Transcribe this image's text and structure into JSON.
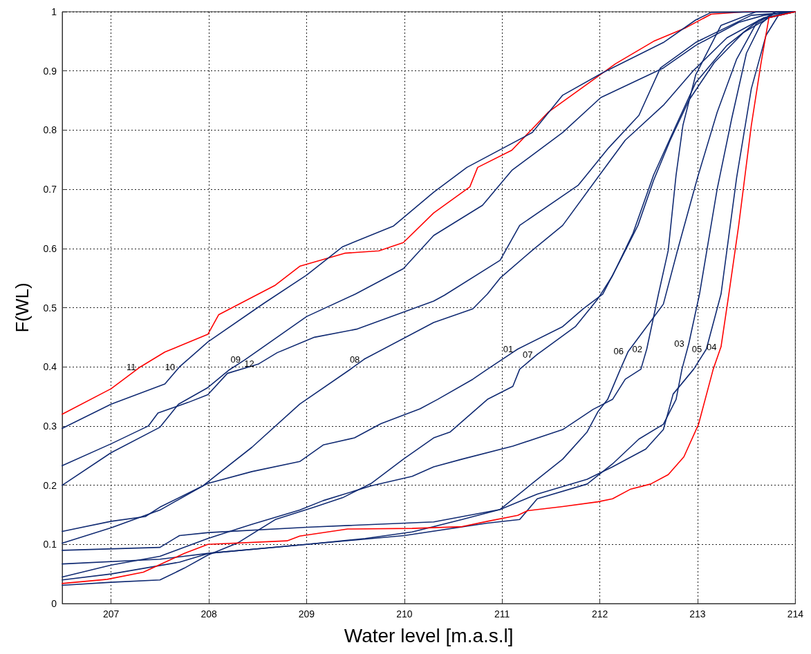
{
  "chart_data": {
    "type": "line",
    "xlabel": "Water level [m.a.s.l]",
    "ylabel": "F(WL)",
    "xlim": [
      206.5,
      214
    ],
    "xticks": [
      207,
      208,
      209,
      210,
      211,
      212,
      213,
      214
    ],
    "ylim": [
      0,
      1
    ],
    "yticks": [
      0,
      0.1,
      0.2,
      0.3,
      0.4,
      0.5,
      0.6,
      0.7,
      0.8,
      0.9,
      1
    ],
    "grid": true,
    "legend": false,
    "marker": "none",
    "line_style": "solid",
    "series": [
      {
        "name": "11",
        "color": "#ff0000",
        "x": [
          206.5,
          207.0,
          207.3,
          207.55,
          207.99,
          208.1,
          208.68,
          208.93,
          209.39,
          209.74,
          209.99,
          210.3,
          210.67,
          210.75,
          211.1,
          211.47,
          212.16,
          212.55,
          212.88,
          213.14,
          213.5,
          214
        ],
        "values": [
          0.32,
          0.363,
          0.4,
          0.425,
          0.455,
          0.488,
          0.538,
          0.57,
          0.592,
          0.596,
          0.61,
          0.66,
          0.704,
          0.737,
          0.766,
          0.83,
          0.912,
          0.95,
          0.973,
          0.996,
          1,
          1
        ]
      },
      {
        "name": "10",
        "color": "#102a72",
        "x": [
          206.5,
          207.0,
          207.55,
          207.7,
          207.99,
          208.56,
          209.0,
          209.37,
          209.89,
          210.3,
          210.64,
          211.31,
          211.62,
          212.03,
          212.65,
          212.98,
          213.14,
          214
        ],
        "values": [
          0.296,
          0.337,
          0.371,
          0.4,
          0.442,
          0.507,
          0.555,
          0.603,
          0.638,
          0.695,
          0.737,
          0.796,
          0.859,
          0.897,
          0.948,
          0.986,
          0.999,
          1
        ]
      },
      {
        "name": "09",
        "color": "#102a72",
        "x": [
          206.5,
          207.0,
          207.5,
          207.69,
          207.99,
          208.21,
          208.37,
          209.0,
          209.5,
          209.99,
          210.3,
          210.8,
          211.1,
          211.62,
          212.01,
          212.65,
          212.98,
          213.42,
          213.68,
          214
        ],
        "values": [
          0.2,
          0.255,
          0.298,
          0.337,
          0.365,
          0.395,
          0.412,
          0.485,
          0.523,
          0.566,
          0.622,
          0.673,
          0.732,
          0.796,
          0.855,
          0.905,
          0.943,
          0.982,
          0.994,
          1
        ]
      },
      {
        "name": "12",
        "color": "#102a72",
        "x": [
          206.5,
          207.0,
          207.38,
          207.48,
          207.79,
          207.99,
          208.19,
          208.51,
          208.7,
          209.08,
          209.52,
          210.3,
          210.41,
          210.98,
          211.18,
          211.78,
          212.09,
          212.4,
          212.62,
          212.98,
          213.55,
          214
        ],
        "values": [
          0.233,
          0.27,
          0.3,
          0.322,
          0.34,
          0.353,
          0.389,
          0.405,
          0.424,
          0.45,
          0.464,
          0.511,
          0.521,
          0.58,
          0.639,
          0.707,
          0.77,
          0.825,
          0.905,
          0.948,
          0.994,
          1
        ]
      },
      {
        "name": "08",
        "color": "#102a72",
        "x": [
          206.5,
          207.0,
          207.5,
          207.94,
          208.44,
          208.93,
          209.44,
          209.59,
          210.3,
          210.7,
          210.85,
          210.98,
          211.31,
          211.62,
          212.01,
          212.26,
          212.65,
          212.96,
          213.3,
          213.68,
          214
        ],
        "values": [
          0.102,
          0.128,
          0.158,
          0.199,
          0.264,
          0.337,
          0.395,
          0.413,
          0.475,
          0.498,
          0.523,
          0.55,
          0.597,
          0.639,
          0.727,
          0.783,
          0.842,
          0.901,
          0.956,
          0.99,
          1
        ]
      },
      {
        "name": "01",
        "color": "#102a72",
        "x": [
          206.5,
          207.0,
          207.35,
          207.5,
          207.99,
          208.44,
          208.93,
          209.17,
          209.49,
          209.76,
          210.16,
          210.34,
          210.7,
          210.85,
          211.16,
          211.62,
          211.83,
          212.03,
          212.21,
          212.39,
          212.55,
          212.72,
          212.91,
          213.17,
          213.47,
          213.73,
          214
        ],
        "values": [
          0.122,
          0.139,
          0.147,
          0.163,
          0.203,
          0.223,
          0.24,
          0.268,
          0.28,
          0.304,
          0.329,
          0.345,
          0.379,
          0.396,
          0.43,
          0.468,
          0.498,
          0.523,
          0.58,
          0.639,
          0.715,
          0.783,
          0.85,
          0.914,
          0.965,
          0.99,
          1
        ]
      },
      {
        "name": "07",
        "color": "#102a72",
        "x": [
          206.5,
          207.0,
          207.5,
          207.75,
          207.99,
          208.29,
          208.68,
          209.08,
          209.37,
          209.66,
          209.99,
          210.3,
          210.47,
          210.85,
          211.11,
          211.18,
          211.36,
          211.75,
          211.98,
          212.13,
          212.34,
          212.55,
          212.78,
          212.98,
          213.3,
          213.63,
          214
        ],
        "values": [
          0.031,
          0.036,
          0.04,
          0.06,
          0.082,
          0.102,
          0.142,
          0.163,
          0.179,
          0.203,
          0.244,
          0.28,
          0.29,
          0.345,
          0.367,
          0.396,
          0.421,
          0.468,
          0.515,
          0.554,
          0.626,
          0.724,
          0.808,
          0.88,
          0.943,
          0.986,
          1
        ]
      },
      {
        "name": "06",
        "color": "#102a72",
        "x": [
          206.5,
          207.0,
          207.7,
          208.0,
          209.0,
          209.6,
          210.08,
          210.59,
          210.98,
          211.36,
          211.62,
          211.87,
          211.98,
          212.08,
          212.21,
          212.29,
          212.52,
          212.65,
          212.8,
          213.0,
          213.2,
          213.4,
          213.6,
          213.8,
          214
        ],
        "values": [
          0.04,
          0.05,
          0.07,
          0.085,
          0.1,
          0.11,
          0.121,
          0.142,
          0.159,
          0.21,
          0.244,
          0.29,
          0.324,
          0.345,
          0.396,
          0.426,
          0.477,
          0.506,
          0.6,
          0.72,
          0.83,
          0.92,
          0.98,
          1,
          1
        ]
      },
      {
        "name": "02",
        "color": "#102a72",
        "x": [
          206.5,
          207.0,
          207.5,
          207.99,
          208.44,
          208.93,
          209.17,
          209.66,
          210.08,
          210.3,
          210.59,
          211.11,
          211.62,
          211.93,
          212.13,
          212.26,
          212.42,
          212.48,
          212.6,
          212.7,
          212.78,
          212.85,
          212.98,
          213.24,
          213.6,
          214
        ],
        "values": [
          0.045,
          0.065,
          0.08,
          0.11,
          0.134,
          0.158,
          0.174,
          0.199,
          0.215,
          0.231,
          0.244,
          0.266,
          0.294,
          0.328,
          0.345,
          0.379,
          0.396,
          0.43,
          0.523,
          0.597,
          0.724,
          0.808,
          0.893,
          0.977,
          1,
          1
        ]
      },
      {
        "name": "03",
        "color": "#102a72",
        "x": [
          206.5,
          207.5,
          208.0,
          209.0,
          210.0,
          210.85,
          211.18,
          211.36,
          211.87,
          212.13,
          212.4,
          212.65,
          212.78,
          212.84,
          212.91,
          213.02,
          213.2,
          213.35,
          213.5,
          213.65,
          213.8,
          214
        ],
        "values": [
          0.067,
          0.075,
          0.085,
          0.1,
          0.115,
          0.136,
          0.142,
          0.177,
          0.202,
          0.236,
          0.278,
          0.303,
          0.345,
          0.396,
          0.439,
          0.523,
          0.7,
          0.82,
          0.93,
          0.98,
          1,
          1
        ]
      },
      {
        "name": "05",
        "color": "#102a72",
        "x": [
          206.5,
          207.5,
          207.7,
          208.0,
          209.0,
          210.3,
          210.98,
          211.36,
          211.87,
          212.13,
          212.47,
          212.65,
          212.75,
          212.96,
          213.09,
          213.24,
          213.4,
          213.55,
          213.7,
          213.85,
          214
        ],
        "values": [
          0.09,
          0.095,
          0.115,
          0.12,
          0.129,
          0.138,
          0.159,
          0.185,
          0.21,
          0.231,
          0.261,
          0.294,
          0.354,
          0.396,
          0.43,
          0.523,
          0.72,
          0.87,
          0.96,
          1,
          1
        ]
      },
      {
        "name": "04",
        "color": "#ff0000",
        "x": [
          206.5,
          206.96,
          207.33,
          207.75,
          207.99,
          208.8,
          208.93,
          209.42,
          210.08,
          210.59,
          210.85,
          211.16,
          211.26,
          211.62,
          211.98,
          212.13,
          212.31,
          212.52,
          212.7,
          212.86,
          213.01,
          213.16,
          213.24,
          213.32,
          213.42,
          213.55,
          213.65,
          213.73,
          214
        ],
        "values": [
          0.034,
          0.041,
          0.053,
          0.085,
          0.1,
          0.106,
          0.114,
          0.126,
          0.127,
          0.13,
          0.139,
          0.149,
          0.157,
          0.164,
          0.172,
          0.177,
          0.193,
          0.202,
          0.218,
          0.248,
          0.303,
          0.396,
          0.434,
          0.523,
          0.638,
          0.808,
          0.914,
          0.99,
          1
        ]
      }
    ]
  }
}
